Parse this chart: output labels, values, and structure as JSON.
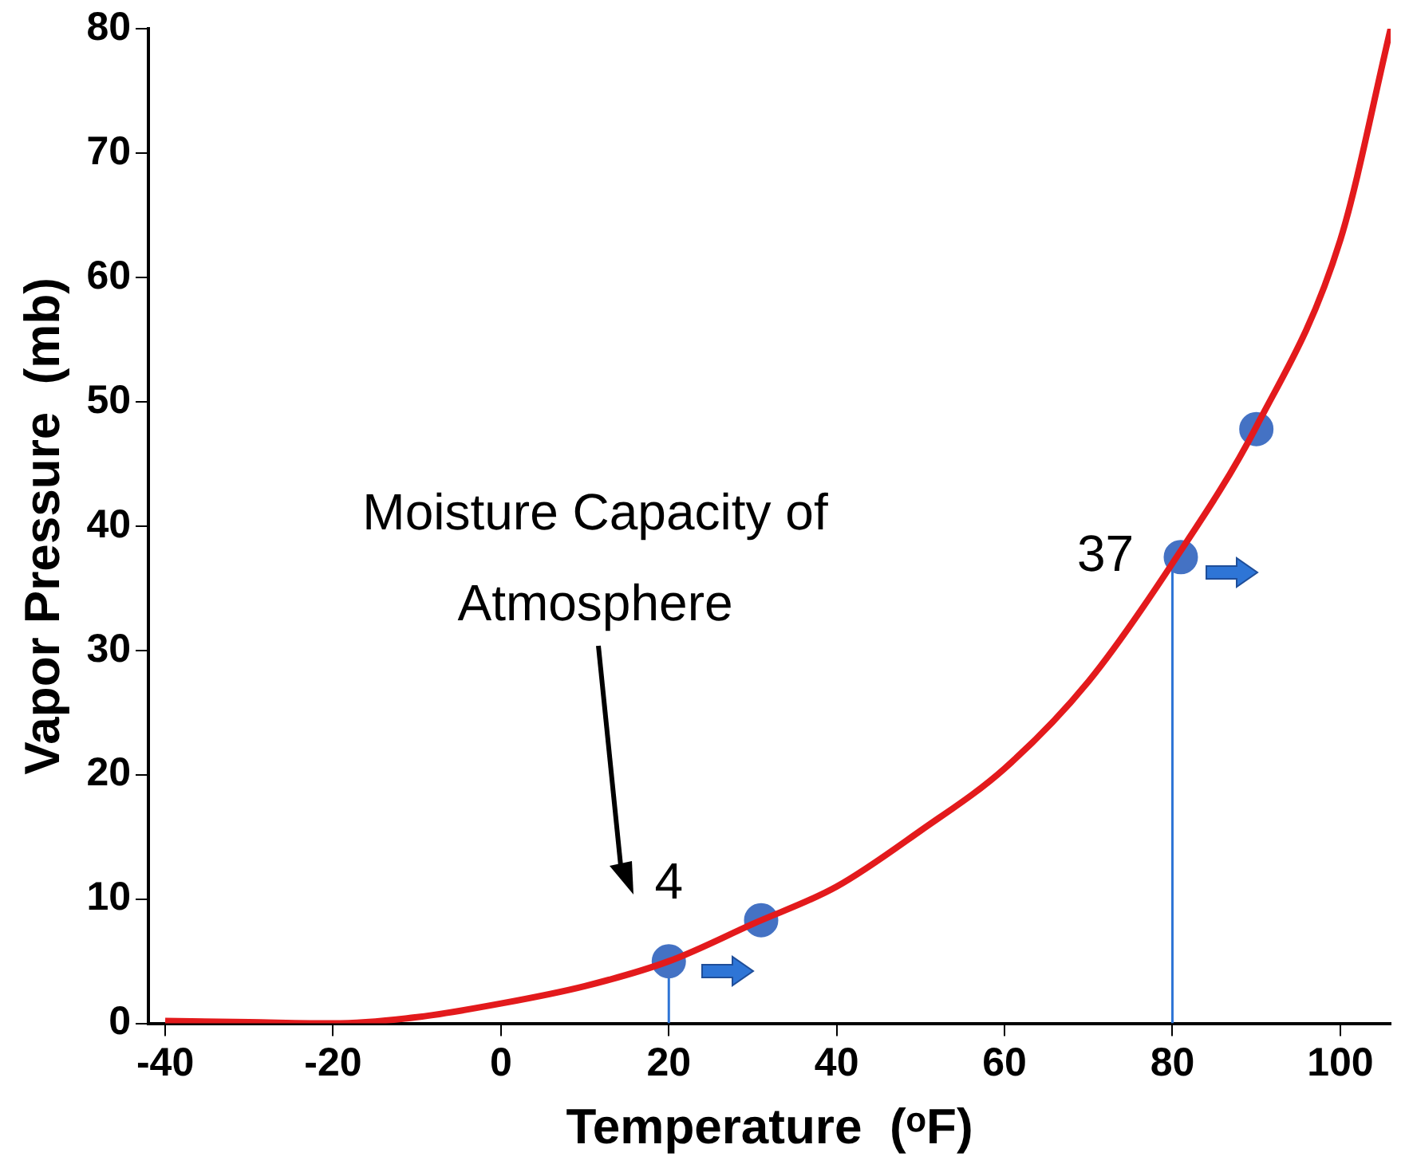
{
  "chart_data": {
    "type": "line",
    "xlabel": "Temperature  (ᵒF)",
    "ylabel": "Vapor Pressure  (mb)",
    "xlim": [
      -42,
      106
    ],
    "xticks": [
      -40,
      -20,
      0,
      20,
      40,
      60,
      80,
      100
    ],
    "ylim": [
      0,
      80
    ],
    "yticks": [
      0,
      10,
      20,
      30,
      40,
      50,
      60,
      70,
      80
    ],
    "grid": false,
    "legend": false,
    "series": [
      {
        "type": "line",
        "color": "#e31a1c",
        "marker": "none",
        "line_style": "solid",
        "x": [
          -40,
          -30,
          -20,
          -10,
          0,
          10,
          20,
          30,
          40,
          50,
          60,
          70,
          80,
          90,
          100,
          106
        ],
        "values": [
          0.2,
          0.1,
          0,
          0.5,
          1.6,
          3,
          5,
          8,
          11,
          15.5,
          20.5,
          27.5,
          37,
          48,
          63,
          80
        ]
      },
      {
        "type": "scatter",
        "color": "#4472c4",
        "marker": "circle",
        "x": [
          20,
          31,
          81,
          90
        ],
        "values": [
          5,
          8.3,
          37.5,
          47.8
        ]
      },
      {
        "type": "line",
        "color": "#2e75d6",
        "marker": "none",
        "x": [
          20,
          20
        ],
        "values": [
          0,
          5
        ]
      },
      {
        "type": "line",
        "color": "#2e75d6",
        "marker": "none",
        "x": [
          80,
          80
        ],
        "values": [
          0,
          37
        ]
      }
    ],
    "annotations": [
      "Moisture Capacity of Atmosphere",
      {
        "text": "4",
        "x": 20,
        "y": 5
      },
      {
        "text": "37",
        "x": 80,
        "y": 37
      }
    ]
  }
}
